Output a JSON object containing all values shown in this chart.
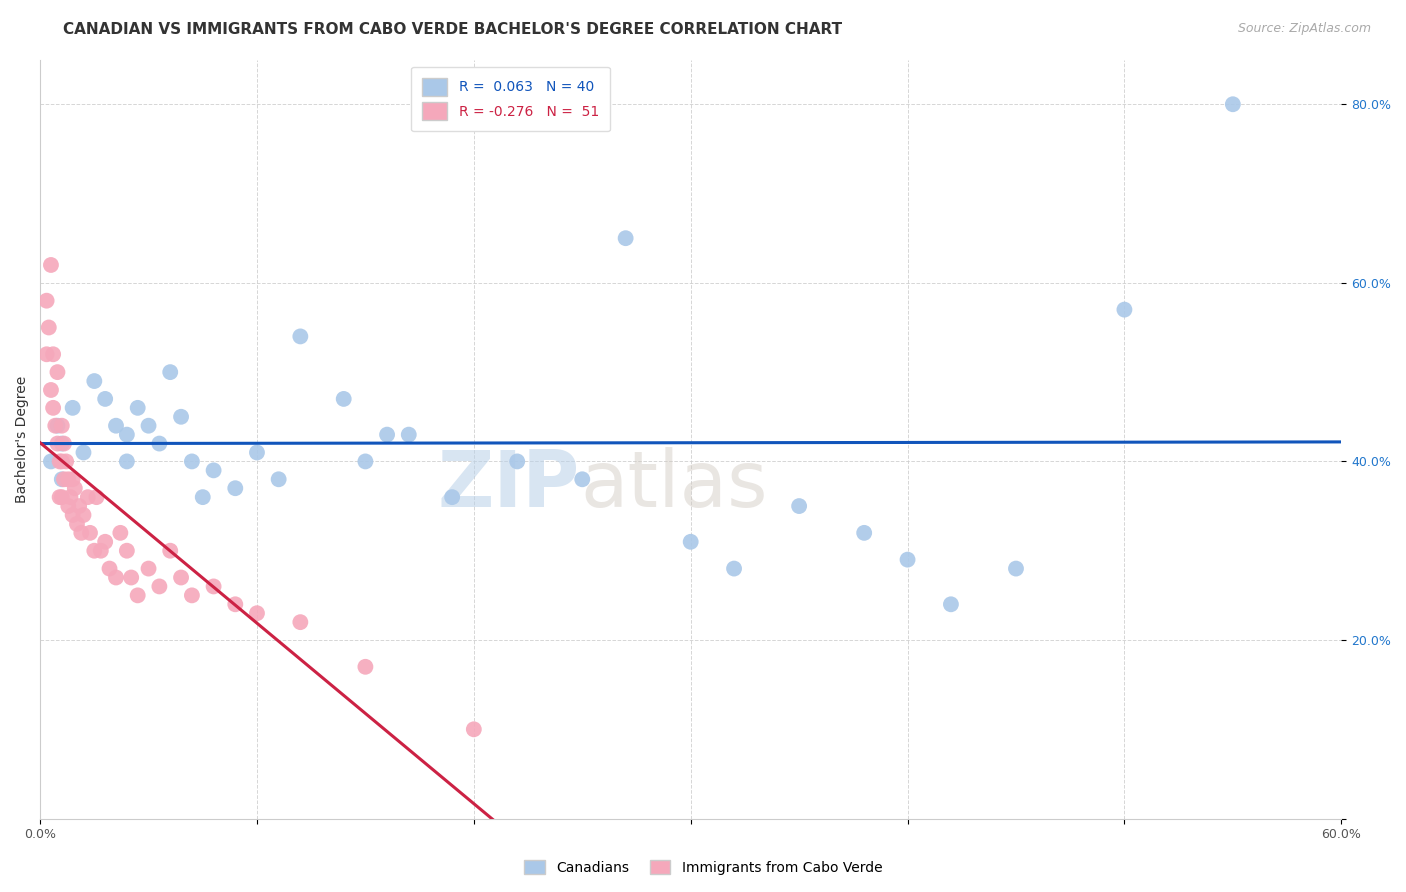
{
  "title": "CANADIAN VS IMMIGRANTS FROM CABO VERDE BACHELOR'S DEGREE CORRELATION CHART",
  "source": "Source: ZipAtlas.com",
  "xlabel": "",
  "ylabel": "Bachelor's Degree",
  "xlim": [
    0.0,
    0.6
  ],
  "ylim": [
    0.0,
    0.85
  ],
  "xticks": [
    0.0,
    0.1,
    0.2,
    0.3,
    0.4,
    0.5,
    0.6
  ],
  "yticks": [
    0.0,
    0.2,
    0.4,
    0.6,
    0.8
  ],
  "ytick_labels": [
    "",
    "20.0%",
    "40.0%",
    "60.0%",
    "80.0%"
  ],
  "R_canadian": 0.063,
  "N_canadian": 40,
  "R_caboverde": -0.276,
  "N_caboverde": 51,
  "canadian_color": "#aac8e8",
  "caboverde_color": "#f5a8bb",
  "trend_canadian_color": "#1155bb",
  "trend_caboverde_color": "#cc2244",
  "background_color": "#ffffff",
  "grid_color": "#cccccc",
  "canadian_x": [
    0.005,
    0.008,
    0.01,
    0.01,
    0.015,
    0.02,
    0.025,
    0.03,
    0.035,
    0.04,
    0.04,
    0.045,
    0.05,
    0.055,
    0.06,
    0.065,
    0.07,
    0.075,
    0.08,
    0.09,
    0.1,
    0.11,
    0.12,
    0.14,
    0.15,
    0.16,
    0.17,
    0.19,
    0.22,
    0.25,
    0.27,
    0.3,
    0.32,
    0.35,
    0.38,
    0.4,
    0.42,
    0.45,
    0.5,
    0.55
  ],
  "canadian_y": [
    0.4,
    0.44,
    0.42,
    0.38,
    0.46,
    0.41,
    0.49,
    0.47,
    0.44,
    0.43,
    0.4,
    0.46,
    0.44,
    0.42,
    0.5,
    0.45,
    0.4,
    0.36,
    0.39,
    0.37,
    0.41,
    0.38,
    0.54,
    0.47,
    0.4,
    0.43,
    0.43,
    0.36,
    0.4,
    0.38,
    0.65,
    0.31,
    0.28,
    0.35,
    0.32,
    0.29,
    0.24,
    0.28,
    0.57,
    0.8
  ],
  "caboverde_x": [
    0.003,
    0.003,
    0.004,
    0.005,
    0.005,
    0.006,
    0.006,
    0.007,
    0.008,
    0.008,
    0.009,
    0.009,
    0.01,
    0.01,
    0.01,
    0.011,
    0.011,
    0.012,
    0.013,
    0.013,
    0.014,
    0.015,
    0.015,
    0.016,
    0.017,
    0.018,
    0.019,
    0.02,
    0.022,
    0.023,
    0.025,
    0.026,
    0.028,
    0.03,
    0.032,
    0.035,
    0.037,
    0.04,
    0.042,
    0.045,
    0.05,
    0.055,
    0.06,
    0.065,
    0.07,
    0.08,
    0.09,
    0.1,
    0.12,
    0.15,
    0.2
  ],
  "caboverde_y": [
    0.58,
    0.52,
    0.55,
    0.48,
    0.62,
    0.52,
    0.46,
    0.44,
    0.42,
    0.5,
    0.4,
    0.36,
    0.44,
    0.4,
    0.36,
    0.42,
    0.38,
    0.4,
    0.38,
    0.35,
    0.36,
    0.38,
    0.34,
    0.37,
    0.33,
    0.35,
    0.32,
    0.34,
    0.36,
    0.32,
    0.3,
    0.36,
    0.3,
    0.31,
    0.28,
    0.27,
    0.32,
    0.3,
    0.27,
    0.25,
    0.28,
    0.26,
    0.3,
    0.27,
    0.25,
    0.26,
    0.24,
    0.23,
    0.22,
    0.17,
    0.1
  ],
  "trend_cv_solid_end": 0.25,
  "trend_cv_dash_end": 0.5,
  "legend_label_canadian": "Canadians",
  "legend_label_caboverde": "Immigrants from Cabo Verde",
  "watermark_zip": "ZIP",
  "watermark_atlas": "atlas",
  "title_fontsize": 11,
  "axis_label_fontsize": 10,
  "tick_fontsize": 9,
  "legend_fontsize": 10
}
